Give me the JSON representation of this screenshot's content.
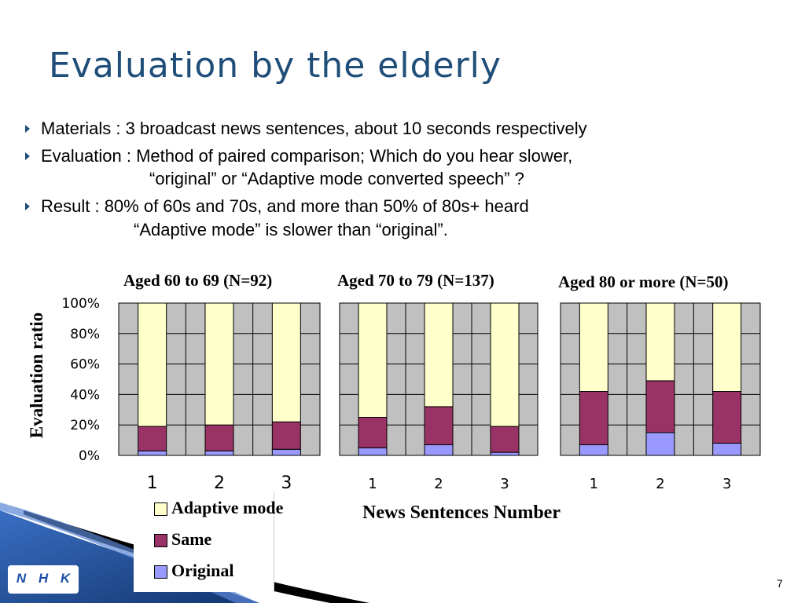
{
  "slide": {
    "title": "Evaluation by the elderly",
    "page_number": "7",
    "logo_letters": [
      "N",
      "H",
      "K"
    ]
  },
  "bullets": [
    {
      "text": "Materials : 3 broadcast news sentences, about 10 seconds respectively"
    },
    {
      "text": "Evaluation : Method of paired comparison;  Which do you hear slower,",
      "cont": "“original” or “Adaptive mode converted speech” ?"
    },
    {
      "text": "Result   :   80% of 60s and 70s,  and more than 50% of 80s+ heard",
      "cont": "“Adaptive mode” is slower than “original”."
    }
  ],
  "chart_data": {
    "type": "bar",
    "stacked": true,
    "percent_stacked": true,
    "ylabel": "Evaluation ratio",
    "xlabel": "News Sentences Number",
    "ylim": [
      0,
      100
    ],
    "y_ticks": [
      "100%",
      "80%",
      "60%",
      "40%",
      "20%",
      "0%"
    ],
    "grid": true,
    "legend": [
      {
        "name": "Adaptive mode",
        "color": "#ffffcc"
      },
      {
        "name": "Same",
        "color": "#993366"
      },
      {
        "name": "Original",
        "color": "#9999ff"
      }
    ],
    "panels": [
      {
        "title": "Aged 60 to 69 (N=92)",
        "categories": [
          "1",
          "2",
          "3"
        ],
        "series": [
          {
            "name": "Original",
            "values": [
              3,
              3,
              4
            ]
          },
          {
            "name": "Same",
            "values": [
              16,
              17,
              18
            ]
          },
          {
            "name": "Adaptive mode",
            "values": [
              81,
              80,
              78
            ]
          }
        ]
      },
      {
        "title": "Aged 70 to 79 (N=137)",
        "categories": [
          "1",
          "2",
          "3"
        ],
        "series": [
          {
            "name": "Original",
            "values": [
              5,
              7,
              2
            ]
          },
          {
            "name": "Same",
            "values": [
              20,
              25,
              17
            ]
          },
          {
            "name": "Adaptive mode",
            "values": [
              75,
              68,
              81
            ]
          }
        ]
      },
      {
        "title": "Aged 80 or more (N=50)",
        "categories": [
          "1",
          "2",
          "3"
        ],
        "series": [
          {
            "name": "Original",
            "values": [
              7,
              15,
              8
            ]
          },
          {
            "name": "Same",
            "values": [
              35,
              34,
              34
            ]
          },
          {
            "name": "Adaptive mode",
            "values": [
              58,
              51,
              58
            ]
          }
        ]
      }
    ]
  },
  "colors": {
    "title": "#1f4e79",
    "plot_bg": "#c0c0c0",
    "adaptive": "#ffffcc",
    "same": "#993366",
    "original": "#9999ff",
    "corner_blue": "#1e4fa8"
  }
}
